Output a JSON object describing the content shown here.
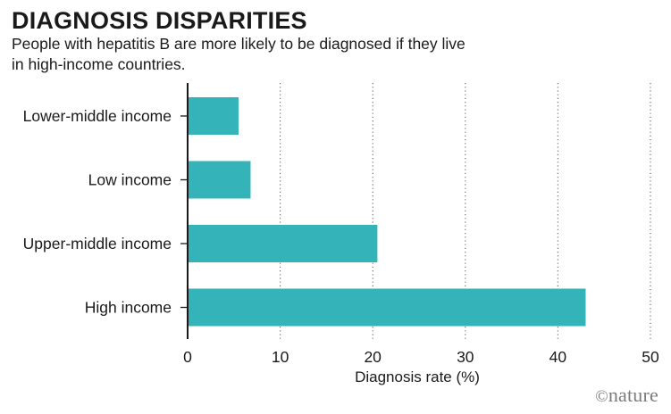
{
  "header": {
    "title": "DIAGNOSIS DISPARITIES",
    "subtitle": "People with hepatitis B are more likely to be diagnosed if they live in high-income countries."
  },
  "credit": {
    "symbol": "©",
    "brand": "nature"
  },
  "colors": {
    "bar": "#34b4b8",
    "text": "#1a1a1a",
    "grid": "#666666",
    "credit": "#7b7b7b"
  },
  "chart_data": {
    "type": "bar",
    "orientation": "horizontal",
    "title": "DIAGNOSIS DISPARITIES",
    "categories": [
      "Lower-middle income",
      "Low income",
      "Upper-middle income",
      "High income"
    ],
    "values": [
      5.5,
      6.8,
      20.5,
      43
    ],
    "xlabel": "Diagnosis rate (%)",
    "ylabel": "",
    "xlim": [
      0,
      50
    ],
    "xticks": [
      0,
      10,
      20,
      30,
      40,
      50
    ],
    "grid": "vertical dotted"
  }
}
